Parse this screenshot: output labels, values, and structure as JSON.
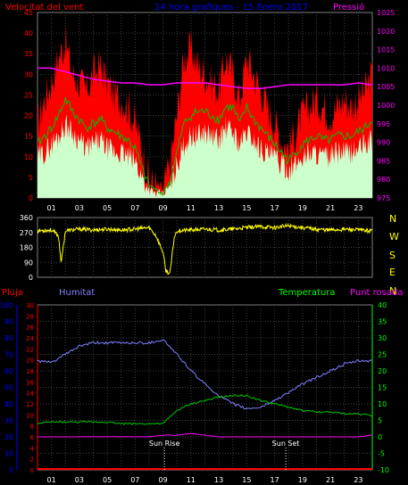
{
  "header": {
    "left_title": "Velocitat del vent",
    "center_title": "24 hora grafiques - 15 Enero 2017",
    "right_title": "Pressió"
  },
  "compass": [
    "N",
    "W",
    "S",
    "E",
    "N"
  ],
  "lower_labels": {
    "rain": "Pluja",
    "humidity": "Humitat",
    "temperature": "Temperatura",
    "dewpoint": "Punt rosada"
  },
  "annotations": {
    "sun_rise": "Sun Rise",
    "sun_set": "Sun Set"
  },
  "colors": {
    "wind_gust": "#ff0000",
    "wind_avg": "#00c000",
    "wind_speed": "#ccffcc",
    "pressure": "#ff00ff",
    "direction": "#ffff00",
    "humidity": "#8080ff",
    "temperature": "#00cc00",
    "dewpoint": "#ff00ff",
    "rain": "#ff0000",
    "axis_left_top": "#ff0000",
    "axis_right_top": "#ff00ff",
    "axis_humidity": "#0000ff",
    "axis_rain": "#ff0000",
    "axis_temp": "#00ff00",
    "center_title": "#0000ff"
  },
  "chart_data": [
    {
      "type": "line",
      "title": "24 hora grafiques - 15 Enero 2017",
      "xticks": [
        "01",
        "03",
        "05",
        "07",
        "09",
        "11",
        "13",
        "15",
        "17",
        "19",
        "21",
        "23"
      ],
      "x_unit": "hour",
      "xlim": [
        0,
        24
      ],
      "ylim_left": [
        0,
        45
      ],
      "yticks_left": [
        0,
        5,
        10,
        15,
        20,
        25,
        30,
        35,
        40,
        45
      ],
      "ylim_right": [
        975,
        1025
      ],
      "yticks_right": [
        975,
        980,
        985,
        990,
        995,
        1000,
        1005,
        1010,
        1015,
        1020,
        1025
      ],
      "series": [
        {
          "name": "Velocitat del vent",
          "x": [
            0,
            0.5,
            1,
            1.5,
            2,
            2.5,
            3,
            3.5,
            4,
            4.5,
            5,
            5.5,
            6,
            6.5,
            7,
            7.5,
            8,
            8.5,
            9,
            9.5,
            10,
            10.5,
            11,
            11.5,
            12,
            12.5,
            13,
            13.5,
            14,
            14.5,
            15,
            15.5,
            16,
            16.5,
            17,
            17.5,
            18,
            18.5,
            19,
            19.5,
            20,
            20.5,
            21,
            21.5,
            22,
            22.5,
            23,
            23.5,
            24
          ],
          "y": [
            18,
            24,
            28,
            34,
            38,
            30,
            28,
            26,
            30,
            32,
            28,
            25,
            24,
            22,
            18,
            12,
            4,
            3,
            2,
            8,
            20,
            34,
            36,
            32,
            30,
            28,
            26,
            34,
            30,
            24,
            34,
            30,
            26,
            22,
            18,
            14,
            12,
            16,
            20,
            22,
            24,
            22,
            20,
            22,
            24,
            22,
            24,
            26,
            30
          ]
        },
        {
          "name": "Velocitat del vent",
          "x": [
            0,
            0.5,
            1,
            1.5,
            2,
            2.5,
            3,
            3.5,
            4,
            4.5,
            5,
            5.5,
            6,
            6.5,
            7,
            7.5,
            8,
            8.5,
            9,
            9.5,
            10,
            10.5,
            11,
            11.5,
            12,
            12.5,
            13,
            13.5,
            14,
            14.5,
            15,
            15.5,
            16,
            16.5,
            17,
            17.5,
            18,
            18.5,
            19,
            19.5,
            20,
            20.5,
            21,
            21.5,
            22,
            22.5,
            23,
            23.5,
            24
          ],
          "y": [
            13,
            15,
            17,
            20,
            24,
            21,
            19,
            17,
            18,
            19,
            17,
            16,
            15,
            14,
            12,
            7,
            3,
            2,
            1,
            4,
            11,
            18,
            20,
            21,
            21,
            20,
            19,
            22,
            22,
            18,
            22,
            19,
            17,
            15,
            13,
            11,
            9,
            11,
            13,
            14,
            15,
            14,
            14,
            15,
            15,
            15,
            16,
            17,
            19
          ]
        },
        {
          "name": "Velocitat del vent",
          "x": [
            0,
            0.5,
            1,
            1.5,
            2,
            2.5,
            3,
            3.5,
            4,
            4.5,
            5,
            5.5,
            6,
            6.5,
            7,
            7.5,
            8,
            8.5,
            9,
            9.5,
            10,
            10.5,
            11,
            11.5,
            12,
            12.5,
            13,
            13.5,
            14,
            14.5,
            15,
            15.5,
            16,
            16.5,
            17,
            17.5,
            18,
            18.5,
            19,
            19.5,
            20,
            20.5,
            21,
            21.5,
            22,
            22.5,
            23,
            23.5,
            24
          ],
          "y": [
            10,
            11,
            13,
            15,
            18,
            16,
            14,
            12,
            13,
            14,
            12,
            11,
            11,
            10,
            9,
            5,
            2,
            1,
            1,
            3,
            8,
            13,
            15,
            15,
            16,
            15,
            14,
            17,
            16,
            13,
            16,
            14,
            12,
            11,
            10,
            8,
            7,
            8,
            10,
            11,
            11,
            10,
            10,
            11,
            11,
            11,
            12,
            13,
            14
          ]
        },
        {
          "name": "Pressió",
          "axis": "right",
          "x": [
            0,
            1,
            2,
            3,
            4,
            5,
            6,
            7,
            8,
            9,
            10,
            11,
            12,
            13,
            14,
            15,
            16,
            17,
            18,
            19,
            20,
            21,
            22,
            23,
            24
          ],
          "y": [
            1010,
            1010,
            1009,
            1008,
            1007,
            1006.5,
            1006,
            1006,
            1005.5,
            1005.5,
            1006,
            1006,
            1006,
            1005.5,
            1005,
            1004.5,
            1004.5,
            1005,
            1005.5,
            1005.5,
            1005.5,
            1005.5,
            1005.5,
            1006,
            1005.5
          ]
        }
      ]
    },
    {
      "type": "line",
      "xlim": [
        0,
        24
      ],
      "ylim": [
        0,
        360
      ],
      "yticks": [
        0,
        90,
        180,
        270,
        360
      ],
      "series": [
        {
          "name": "direction",
          "x": [
            0,
            1,
            1.5,
            1.7,
            2,
            3,
            4,
            5,
            6,
            7,
            8,
            8.5,
            9,
            9.2,
            9.5,
            9.8,
            10,
            11,
            12,
            13,
            14,
            15,
            16,
            17,
            18,
            19,
            20,
            21,
            22,
            23,
            24
          ],
          "y": [
            280,
            285,
            250,
            90,
            280,
            290,
            285,
            290,
            285,
            290,
            300,
            250,
            150,
            40,
            20,
            240,
            280,
            285,
            290,
            285,
            290,
            300,
            305,
            300,
            310,
            300,
            290,
            285,
            290,
            285,
            280
          ]
        }
      ]
    },
    {
      "type": "line",
      "xticks": [
        "01",
        "03",
        "05",
        "07",
        "09",
        "11",
        "13",
        "15",
        "17",
        "19",
        "21",
        "23"
      ],
      "xlim": [
        0,
        24
      ],
      "ylim_humidity": [
        0,
        100
      ],
      "yticks_humidity": [
        0,
        10,
        20,
        30,
        40,
        50,
        60,
        70,
        80,
        90,
        100
      ],
      "ylim_rain": [
        0,
        30
      ],
      "yticks_rain": [
        0,
        2,
        4,
        6,
        8,
        10,
        12,
        14,
        16,
        18,
        20,
        22,
        24,
        26,
        28,
        30
      ],
      "ylim_temp": [
        -10,
        40
      ],
      "yticks_temp": [
        -10,
        -5,
        0,
        5,
        10,
        15,
        20,
        25,
        30,
        35,
        40
      ],
      "series": [
        {
          "name": "Humitat",
          "axis": "humidity",
          "x": [
            0,
            1,
            2,
            3,
            4,
            5,
            6,
            7,
            8,
            9,
            10,
            11,
            12,
            13,
            14,
            15,
            16,
            17,
            18,
            19,
            20,
            21,
            22,
            23,
            24
          ],
          "y": [
            66,
            65,
            70,
            75,
            77,
            77,
            77,
            77,
            77,
            79,
            70,
            60,
            52,
            45,
            40,
            37,
            38,
            42,
            47,
            52,
            56,
            60,
            64,
            66,
            66
          ]
        },
        {
          "name": "Temperatura",
          "axis": "temp",
          "x": [
            0,
            1,
            2,
            3,
            4,
            5,
            6,
            7,
            8,
            9,
            10,
            11,
            12,
            13,
            14,
            15,
            16,
            17,
            18,
            19,
            20,
            21,
            22,
            23,
            24
          ],
          "y": [
            4,
            4.5,
            4.5,
            4.5,
            4.5,
            4.5,
            4,
            4,
            4,
            4,
            8,
            10,
            11,
            12,
            12.5,
            12.5,
            11,
            10,
            9,
            8,
            7.5,
            7.5,
            7,
            7,
            6.5
          ]
        },
        {
          "name": "Punt rosada",
          "axis": "temp",
          "x": [
            0,
            1,
            2,
            3,
            4,
            5,
            6,
            7,
            8,
            9,
            10,
            11,
            12,
            13,
            14,
            15,
            16,
            17,
            18,
            19,
            20,
            21,
            22,
            23,
            24
          ],
          "y": [
            -2.5,
            -2,
            -1,
            0,
            0,
            0,
            0,
            0,
            0,
            0.5,
            0.5,
            1,
            0.5,
            0,
            -2,
            -2.5,
            -4,
            -4,
            -4.5,
            -3,
            -1.5,
            -1,
            -0.5,
            0,
            0.5
          ]
        },
        {
          "name": "Pluja",
          "axis": "rain",
          "x": [
            0,
            24
          ],
          "y": [
            0,
            0
          ]
        }
      ],
      "annotations": [
        {
          "label": "Sun Rise",
          "x": 9.1
        },
        {
          "label": "Sun Set",
          "x": 17.8
        }
      ]
    }
  ]
}
